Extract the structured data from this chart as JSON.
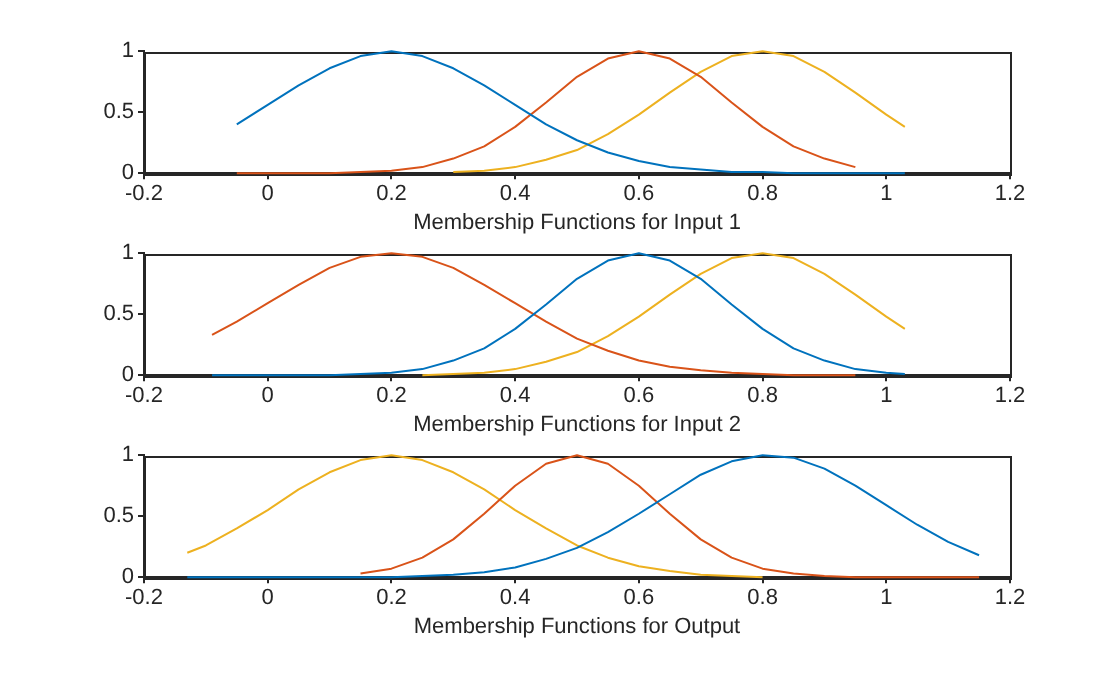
{
  "chart_data": [
    {
      "type": "line",
      "xlabel": "Membership Functions for Input 1",
      "xlim": [
        -0.2,
        1.2
      ],
      "xticks": [
        -0.2,
        0,
        0.2,
        0.4,
        0.6,
        0.8,
        1,
        1.2
      ],
      "ylim": [
        0,
        1
      ],
      "yticks": [
        0,
        0.5,
        1
      ],
      "grid": false,
      "marker": "none",
      "x": [
        -0.05,
        0,
        0.05,
        0.1,
        0.15,
        0.2,
        0.25,
        0.3,
        0.35,
        0.4,
        0.45,
        0.5,
        0.55,
        0.6,
        0.65,
        0.7,
        0.75,
        0.8,
        0.85,
        0.9,
        0.95,
        1.0,
        1.03
      ],
      "series": [
        {
          "color": "#0072bd",
          "values": [
            0.4,
            0.56,
            0.72,
            0.86,
            0.96,
            1,
            0.96,
            0.86,
            0.72,
            0.56,
            0.4,
            0.27,
            0.17,
            0.1,
            0.05,
            0.03,
            0.01,
            0.01,
            0,
            0,
            0,
            0,
            0
          ]
        },
        {
          "color": "#d95319",
          "values": [
            0,
            0,
            0,
            0,
            0.01,
            0.02,
            0.05,
            0.12,
            0.22,
            0.38,
            0.58,
            0.79,
            0.94,
            1,
            0.94,
            0.79,
            0.58,
            0.38,
            0.22,
            0.12,
            0.05,
            null,
            null
          ]
        },
        {
          "color": "#edb120",
          "values": [
            null,
            null,
            null,
            null,
            null,
            null,
            null,
            0.01,
            0.02,
            0.05,
            0.11,
            0.19,
            0.32,
            0.48,
            0.66,
            0.83,
            0.96,
            1,
            0.96,
            0.83,
            0.66,
            0.48,
            0.38
          ]
        }
      ]
    },
    {
      "type": "line",
      "xlabel": "Membership Functions for Input 2",
      "xlim": [
        -0.2,
        1.2
      ],
      "xticks": [
        -0.2,
        0,
        0.2,
        0.4,
        0.6,
        0.8,
        1,
        1.2
      ],
      "ylim": [
        0,
        1
      ],
      "yticks": [
        0,
        0.5,
        1
      ],
      "grid": false,
      "marker": "none",
      "x": [
        -0.09,
        -0.05,
        0,
        0.05,
        0.1,
        0.15,
        0.2,
        0.25,
        0.3,
        0.35,
        0.4,
        0.45,
        0.5,
        0.55,
        0.6,
        0.65,
        0.7,
        0.75,
        0.8,
        0.85,
        0.9,
        0.95,
        1.0,
        1.03
      ],
      "series": [
        {
          "color": "#0072bd",
          "values": [
            0,
            0,
            0,
            0,
            0,
            0.01,
            0.02,
            0.05,
            0.12,
            0.22,
            0.38,
            0.58,
            0.79,
            0.94,
            1,
            0.94,
            0.79,
            0.58,
            0.38,
            0.22,
            0.12,
            0.05,
            0.02,
            0.01
          ]
        },
        {
          "color": "#d95319",
          "values": [
            0.33,
            0.44,
            0.59,
            0.74,
            0.88,
            0.97,
            1,
            0.97,
            0.88,
            0.74,
            0.59,
            0.44,
            0.3,
            0.2,
            0.12,
            0.07,
            0.04,
            0.02,
            0.01,
            0,
            0,
            0,
            null,
            null
          ]
        },
        {
          "color": "#edb120",
          "values": [
            null,
            null,
            null,
            null,
            null,
            null,
            null,
            0,
            0.01,
            0.02,
            0.05,
            0.11,
            0.19,
            0.32,
            0.48,
            0.66,
            0.83,
            0.96,
            1,
            0.96,
            0.83,
            0.66,
            0.48,
            0.38
          ]
        }
      ]
    },
    {
      "type": "line",
      "xlabel": "Membership Functions for Output",
      "xlim": [
        -0.2,
        1.2
      ],
      "xticks": [
        -0.2,
        0,
        0.2,
        0.4,
        0.6,
        0.8,
        1,
        1.2
      ],
      "ylim": [
        0,
        1
      ],
      "yticks": [
        0,
        0.5,
        1
      ],
      "grid": false,
      "marker": "none",
      "x": [
        -0.13,
        -0.1,
        -0.05,
        0,
        0.05,
        0.1,
        0.15,
        0.2,
        0.25,
        0.3,
        0.35,
        0.4,
        0.45,
        0.5,
        0.55,
        0.6,
        0.65,
        0.7,
        0.75,
        0.8,
        0.85,
        0.9,
        0.95,
        1.0,
        1.05,
        1.1,
        1.15
      ],
      "series": [
        {
          "color": "#0072bd",
          "values": [
            0,
            0,
            0,
            0,
            0,
            0,
            0,
            0,
            0.01,
            0.02,
            0.04,
            0.08,
            0.15,
            0.24,
            0.37,
            0.52,
            0.68,
            0.84,
            0.95,
            1,
            0.98,
            0.89,
            0.75,
            0.59,
            0.43,
            0.29,
            0.18
          ]
        },
        {
          "color": "#d95319",
          "values": [
            null,
            null,
            null,
            null,
            null,
            null,
            0.03,
            0.07,
            0.16,
            0.31,
            0.52,
            0.75,
            0.93,
            1,
            0.93,
            0.75,
            0.52,
            0.31,
            0.16,
            0.07,
            0.03,
            0.01,
            0,
            0,
            0,
            0,
            0
          ]
        },
        {
          "color": "#edb120",
          "values": [
            0.2,
            0.26,
            0.4,
            0.55,
            0.72,
            0.86,
            0.96,
            1,
            0.96,
            0.86,
            0.72,
            0.55,
            0.4,
            0.26,
            0.16,
            0.09,
            0.05,
            0.02,
            0.01,
            0,
            null,
            null,
            null,
            null,
            null,
            null,
            null
          ]
        }
      ]
    }
  ]
}
